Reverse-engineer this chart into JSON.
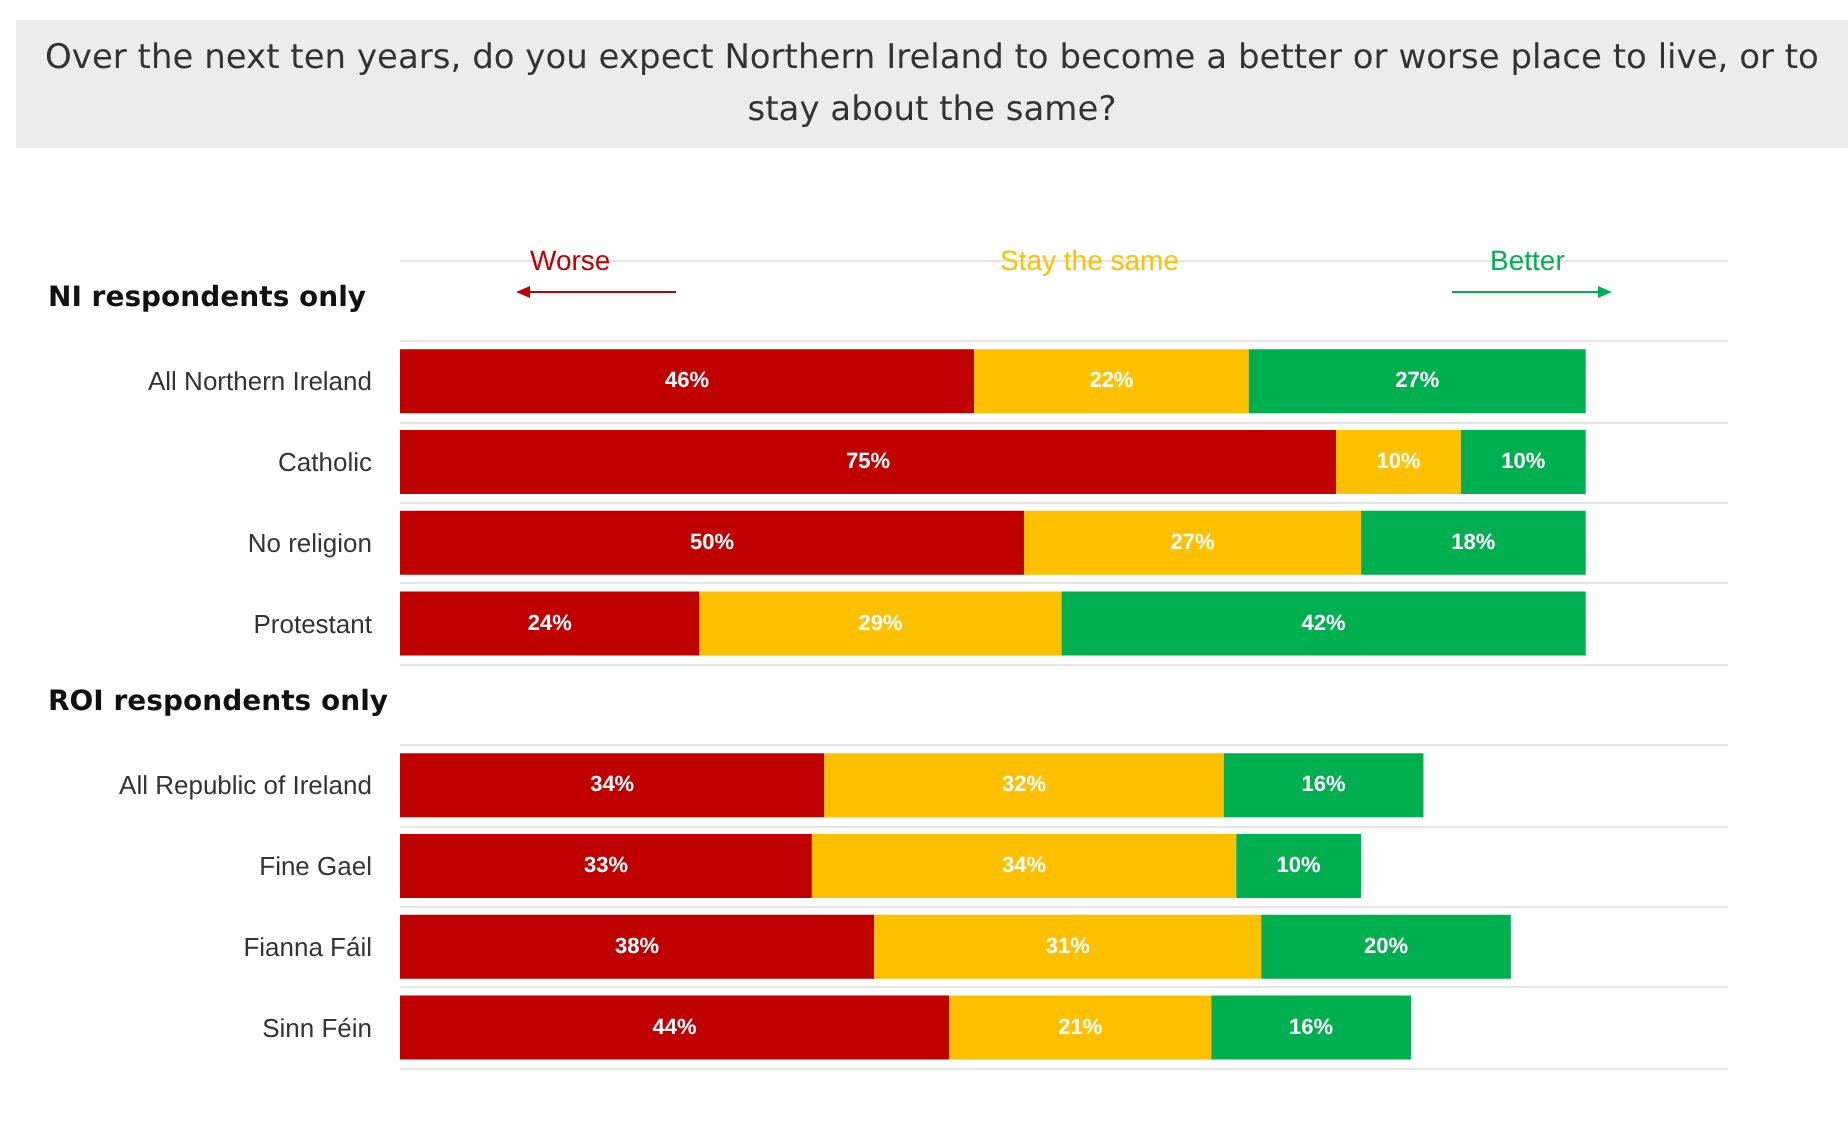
{
  "chart_data": {
    "type": "bar",
    "title": "Over the next ten years, do you expect Northern Ireland to become a better or worse place to live, or to stay about the same?",
    "orientation": "horizontal",
    "stacked": true,
    "legend": "top",
    "grid": "y",
    "annotations": [
      "NI respondents only",
      "ROI respondents only"
    ],
    "categories": [
      null,
      "All Northern Ireland",
      "Catholic",
      "No religion",
      "Protestant",
      null,
      "All Republic of Ireland",
      "Fine Gael",
      "Fianna Fáil",
      "Sinn Féin"
    ],
    "series": [
      {
        "name": "Worse",
        "color": "#c00000",
        "values": [
          null,
          46,
          75,
          50,
          24,
          null,
          34,
          33,
          38,
          44
        ],
        "value_labels": [
          null,
          "46%",
          "75%",
          "50%",
          "24%",
          null,
          "34%",
          "33%",
          "38%",
          "44%"
        ]
      },
      {
        "name": "Stay the same",
        "color": "#ffc000",
        "values": [
          null,
          22,
          10,
          27,
          29,
          null,
          32,
          34,
          31,
          21
        ],
        "value_labels": [
          null,
          "22%",
          "10%",
          "27%",
          "29%",
          null,
          "32%",
          "34%",
          "31%",
          "21%"
        ]
      },
      {
        "name": "Better",
        "color": "#00b050",
        "values": [
          null,
          27,
          10,
          18,
          42,
          null,
          16,
          10,
          20,
          16
        ],
        "value_labels": [
          null,
          "27%",
          "10%",
          "18%",
          "42%",
          null,
          "16%",
          "10%",
          "20%",
          "16%"
        ]
      }
    ]
  }
}
